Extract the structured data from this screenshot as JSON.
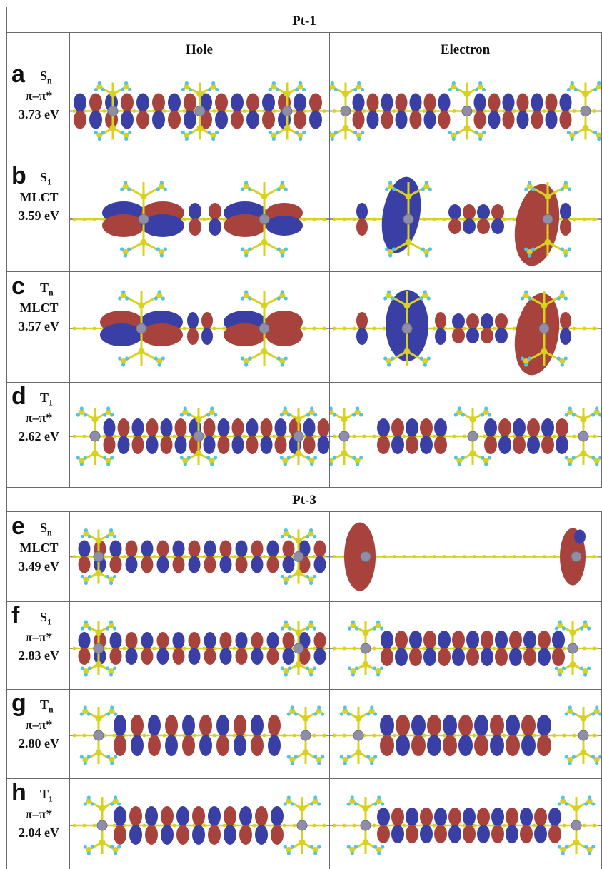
{
  "sections": [
    {
      "title": "Pt-1",
      "col_hole": "Hole",
      "col_electron": "Electron",
      "rows": [
        {
          "letter": "a",
          "state_base": "S",
          "state_sub": "n",
          "kind": "π–π*",
          "energy": "3.73 eV"
        },
        {
          "letter": "b",
          "state_base": "S",
          "state_sub": "1",
          "kind": "MLCT",
          "energy": "3.59 eV"
        },
        {
          "letter": "c",
          "state_base": "T",
          "state_sub": "n",
          "kind": "MLCT",
          "energy": "3.57 eV"
        },
        {
          "letter": "d",
          "state_base": "T",
          "state_sub": "1",
          "kind": "π–π*",
          "energy": "2.62 eV"
        }
      ]
    },
    {
      "title": "Pt-3",
      "rows": [
        {
          "letter": "e",
          "state_base": "S",
          "state_sub": "n",
          "kind": "MLCT",
          "energy": "3.49 eV"
        },
        {
          "letter": "f",
          "state_base": "S",
          "state_sub": "1",
          "kind": "π–π*",
          "energy": "2.83 eV"
        },
        {
          "letter": "g",
          "state_base": "T",
          "state_sub": "n",
          "kind": "π–π*",
          "energy": "2.80 eV"
        },
        {
          "letter": "h",
          "state_base": "T",
          "state_sub": "1",
          "kind": "π–π*",
          "energy": "2.04 eV"
        }
      ]
    }
  ],
  "colors": {
    "lobe_blue": "#3a3fa6",
    "lobe_red": "#a8423c",
    "bond_yellow": "#d8d21e",
    "hydrogen_cyan": "#4fc3e8",
    "platinum_gray": "#8e8ea6",
    "grid_line": "#6a6a6a"
  }
}
